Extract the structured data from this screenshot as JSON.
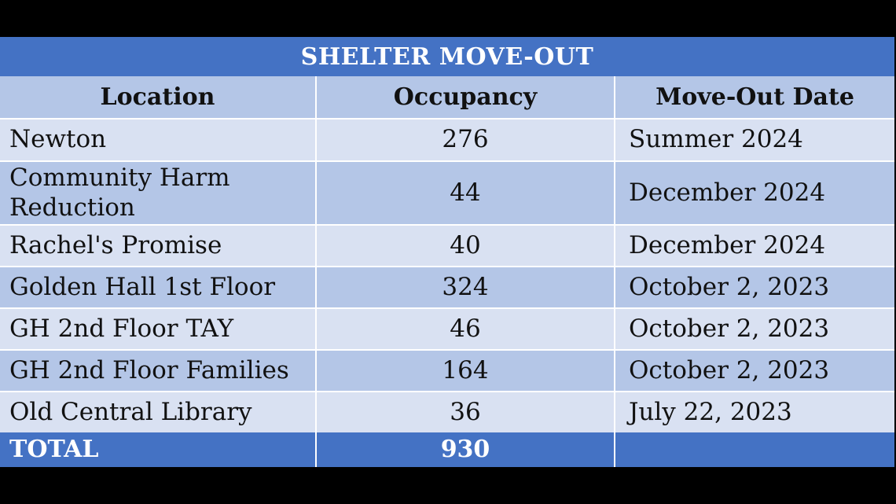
{
  "table": {
    "title": "SHELTER MOVE-OUT",
    "headers": [
      "Location",
      "Occupancy",
      "Move-Out Date"
    ],
    "rows": [
      {
        "location": "Newton",
        "occupancy": "276",
        "date": "Summer 2024"
      },
      {
        "location": "Community Harm Reduction",
        "occupancy": "44",
        "date": "December 2024"
      },
      {
        "location": "Rachel's Promise",
        "occupancy": "40",
        "date": "December 2024"
      },
      {
        "location": "Golden Hall 1st Floor",
        "occupancy": "324",
        "date": "October 2, 2023"
      },
      {
        "location": "GH 2nd Floor TAY",
        "occupancy": "46",
        "date": "October 2, 2023"
      },
      {
        "location": "GH 2nd Floor Families",
        "occupancy": "164",
        "date": "October 2, 2023"
      },
      {
        "location": "Old Central Library",
        "occupancy": "36",
        "date": "July 22, 2023"
      }
    ],
    "total": {
      "label": "TOTAL",
      "occupancy": "930",
      "date": ""
    }
  },
  "colors": {
    "title_bg": "#4472c4",
    "header_bg": "#b4c6e7",
    "row_light": "#d9e1f2",
    "row_dark": "#b4c6e7",
    "total_bg": "#4472c4"
  }
}
